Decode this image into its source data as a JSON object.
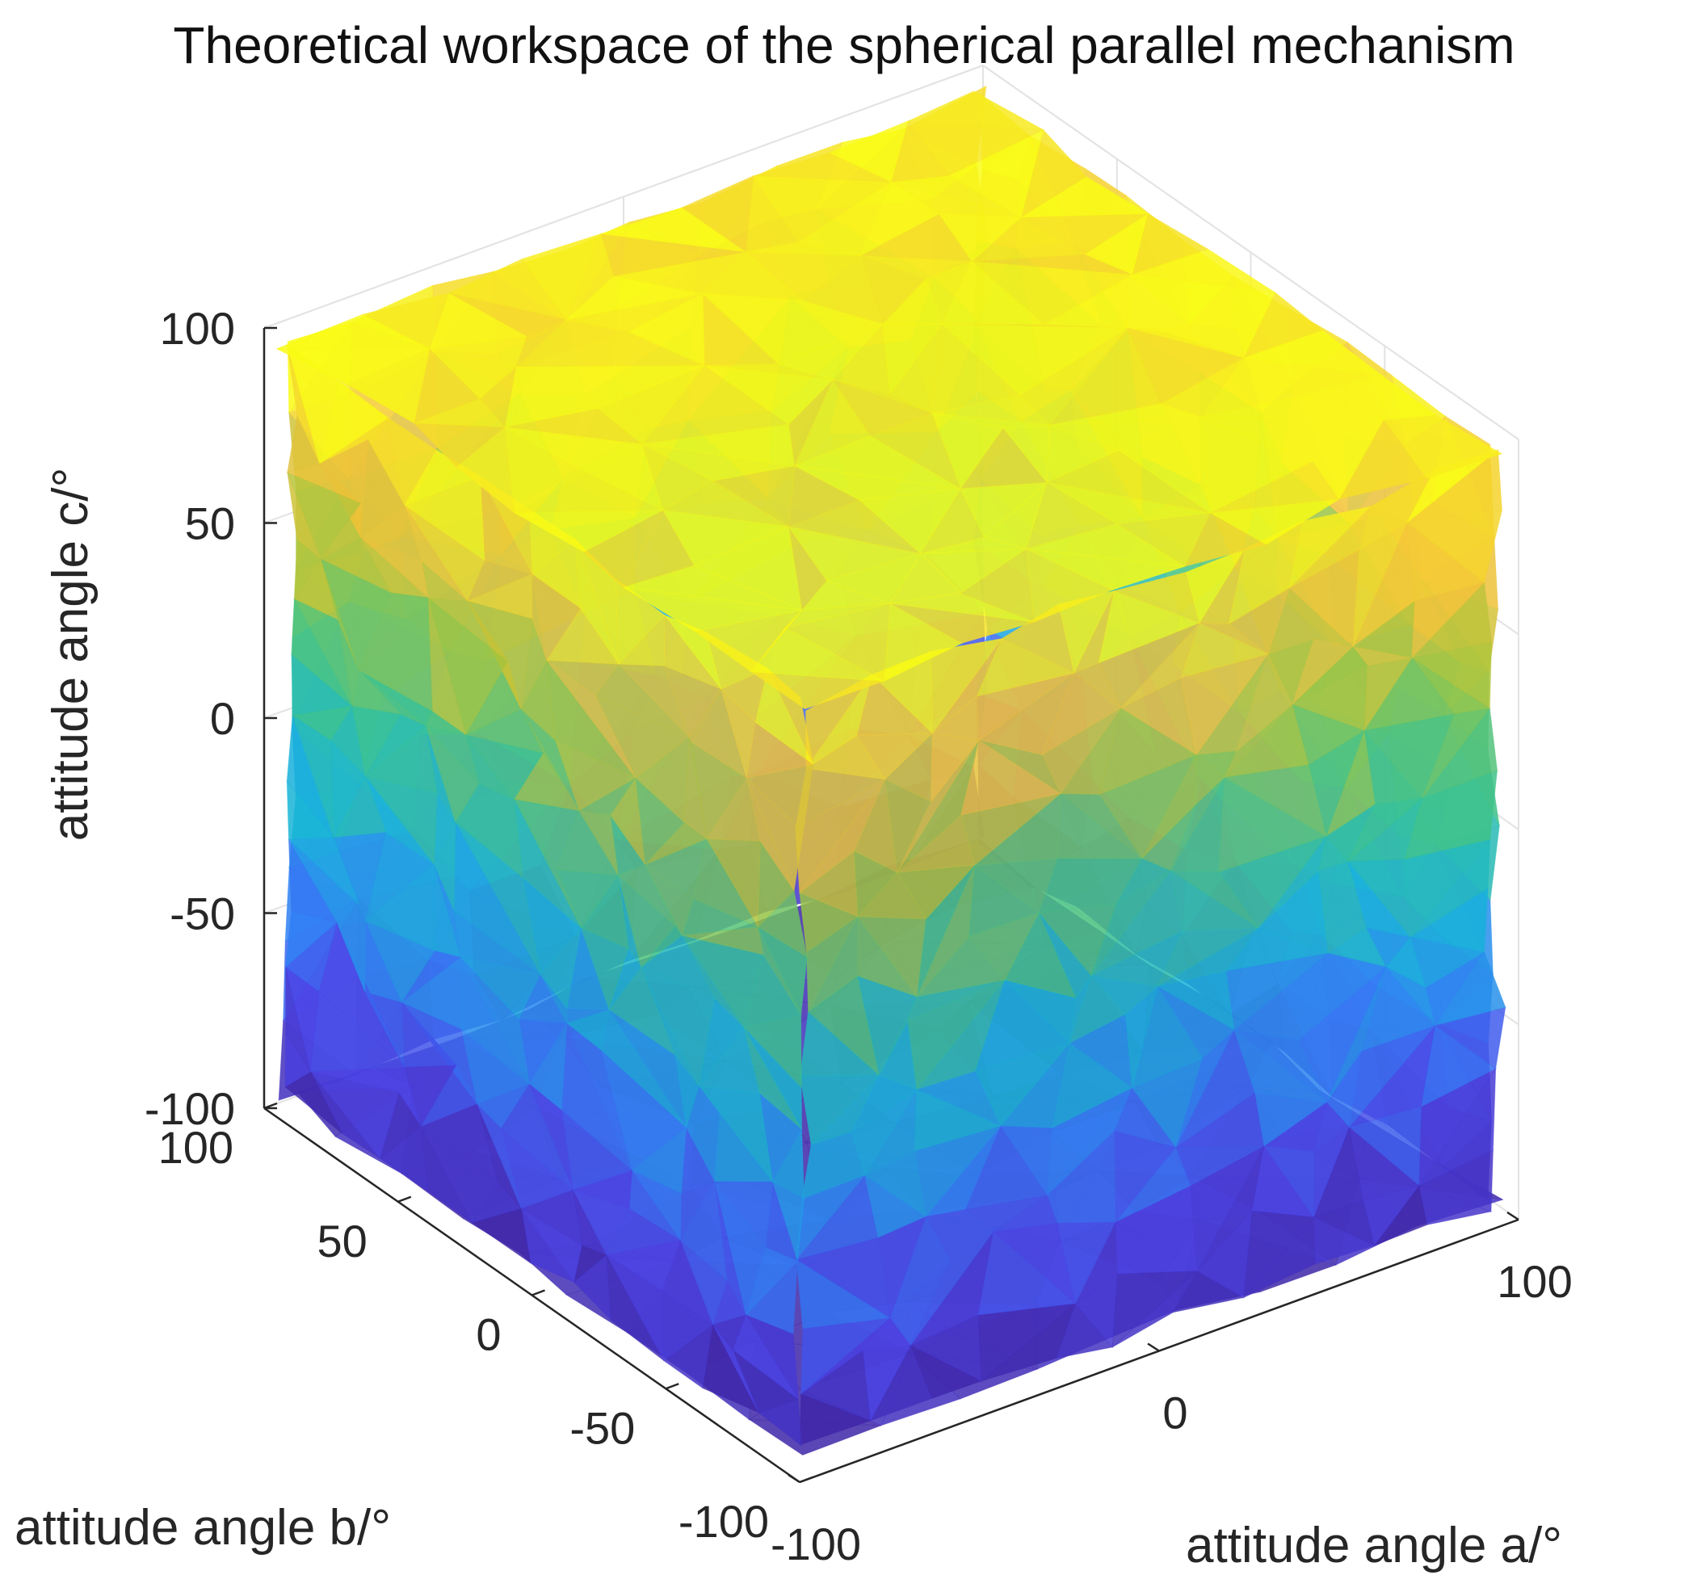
{
  "chart_data": {
    "type": "surface3d",
    "title": "Theoretical workspace of the spherical parallel mechanism",
    "xlabel": "attitude angle a/°",
    "ylabel": "attitude angle b/°",
    "zlabel": "attitude angle c/°",
    "xlim": [
      -100,
      100
    ],
    "ylim": [
      -100,
      100
    ],
    "zlim": [
      -100,
      100
    ],
    "x_ticks": [
      -100,
      0,
      100
    ],
    "y_ticks": [
      -100,
      -50,
      0,
      50,
      100
    ],
    "z_ticks": [
      -100,
      -50,
      0,
      50,
      100
    ],
    "x_tick_labels": [
      "-100",
      "0",
      "100"
    ],
    "y_tick_labels": [
      "-100",
      "-50",
      "0",
      "50",
      "100"
    ],
    "z_tick_labels": [
      "-100",
      "-50",
      "0",
      "50",
      "100"
    ],
    "colormap": "parula",
    "colormap_stops": [
      "#3e26a8",
      "#4a42e6",
      "#2f7ff4",
      "#16b4d7",
      "#3cc28a",
      "#a5c43c",
      "#f3c238",
      "#f9fb14"
    ],
    "grid": true,
    "face_alpha": 0.85
  }
}
